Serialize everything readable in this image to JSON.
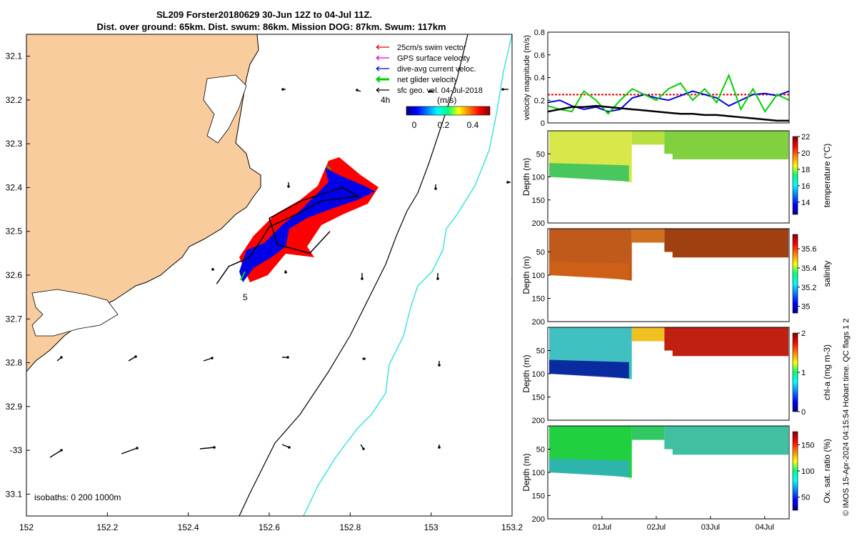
{
  "title": {
    "line1": "SL209 Forster20180629 30-Jun 12Z to 04-Jul 11Z.",
    "line2": "Dist. over ground: 65km. Dist. swum: 86km. Mission DOG: 87km. Swum: 117km"
  },
  "map": {
    "legend": [
      {
        "label": "25cm/s swim vector",
        "color": "#e00000"
      },
      {
        "label": "GPS surface velocity",
        "color": "#e000e0"
      },
      {
        "label": "dive-avg current veloc.",
        "color": "#0000e0"
      },
      {
        "label": "net glider velocity",
        "color": "#00d000"
      },
      {
        "label": "sfc geo. vel. 04-Jul-2018",
        "color": "#000000"
      }
    ],
    "colorbar_label": "(m/s)",
    "colorbar_note": "4h",
    "colorbar_ticks": [
      "0",
      "0.2",
      "0.4"
    ],
    "isobaths_text": "isobaths: 0   200  1000m",
    "start_label": "5",
    "colors": {
      "land": "#f9cc9e",
      "isobath_200": "#000000",
      "isobath_1000": "#33e0e0"
    }
  },
  "chart_data": [
    {
      "type": "scatter",
      "panel": "map",
      "xlabel": "",
      "ylabel": "",
      "xlim": [
        152.0,
        153.2
      ],
      "ylim": [
        -33.15,
        -32.05
      ],
      "x_ticks": [
        152,
        152.2,
        152.4,
        152.6,
        152.8,
        153,
        153.2
      ],
      "x_tick_labels": [
        "152",
        "152.2",
        "152.4",
        "152.6",
        "152.8",
        "153",
        "153.2"
      ],
      "y_ticks": [
        -32.1,
        -32.2,
        -32.3,
        -32.4,
        -32.5,
        -32.6,
        -32.7,
        -32.8,
        -32.9,
        -33.0,
        -33.1
      ],
      "y_tick_labels": [
        "32.1",
        "32.2",
        "32.3",
        "32.4",
        "32.5",
        "32.6",
        "32.7",
        "32.8",
        "32.9",
        "-33",
        "33.1"
      ],
      "glider_track": {
        "x": [
          152.47,
          152.5,
          152.55,
          152.58,
          152.6,
          152.67,
          152.73,
          152.82,
          152.78,
          152.68,
          152.6,
          152.62,
          152.7,
          152.73,
          152.75
        ],
        "y": [
          -32.62,
          -32.58,
          -32.56,
          -32.52,
          -32.49,
          -32.46,
          -32.43,
          -32.42,
          -32.4,
          -32.43,
          -32.47,
          -32.53,
          -32.55,
          -32.52,
          -32.5
        ]
      }
    },
    {
      "type": "line",
      "panel": "velocity",
      "ylabel": "velocity magnitude (m/s)",
      "ylim": [
        0,
        0.8
      ],
      "y_ticks": [
        0,
        0.2,
        0.4,
        0.6,
        0.8
      ],
      "y_tick_labels": [
        "0",
        "0.2",
        "0.4",
        "0.6",
        "0.8"
      ],
      "x_days": [
        0.0,
        0.2,
        0.4,
        0.6,
        0.8,
        1.0,
        1.2,
        1.4,
        1.6,
        1.8,
        2.0,
        2.2,
        2.4,
        2.6,
        2.8,
        3.0,
        3.2,
        3.4,
        3.6,
        3.8,
        4.0
      ],
      "series": [
        {
          "name": "25cm/s swim vector",
          "color": "#e00000",
          "values": [
            0.25,
            0.25,
            0.25,
            0.25,
            0.25,
            0.25,
            0.25,
            0.25,
            0.25,
            0.25,
            0.25,
            0.25,
            0.25,
            0.25,
            0.25,
            0.25,
            0.25,
            0.25,
            0.25,
            0.25,
            0.25
          ]
        },
        {
          "name": "dive-avg current veloc.",
          "color": "#0000e0",
          "values": [
            0.18,
            0.2,
            0.15,
            0.12,
            0.14,
            0.1,
            0.12,
            0.22,
            0.25,
            0.22,
            0.2,
            0.24,
            0.28,
            0.25,
            0.22,
            0.15,
            0.2,
            0.25,
            0.26,
            0.24,
            0.28
          ]
        },
        {
          "name": "net glider velocity",
          "color": "#00d000",
          "values": [
            0.15,
            0.12,
            0.1,
            0.28,
            0.2,
            0.08,
            0.2,
            0.3,
            0.25,
            0.2,
            0.3,
            0.35,
            0.2,
            0.3,
            0.18,
            0.42,
            0.12,
            0.3,
            0.1,
            0.25,
            0.2
          ]
        },
        {
          "name": "sfc geo. vel. 04-Jul-2018",
          "color": "#000000",
          "values": [
            0.1,
            0.12,
            0.14,
            0.14,
            0.15,
            0.14,
            0.13,
            0.12,
            0.11,
            0.1,
            0.09,
            0.08,
            0.08,
            0.07,
            0.07,
            0.06,
            0.05,
            0.04,
            0.03,
            0.02,
            0.02
          ]
        }
      ]
    },
    {
      "type": "heatmap",
      "panel": "temperature",
      "ylabel": "Depth (m)",
      "colorbar_label": "temperature (°C)",
      "ylim": [
        200,
        0
      ],
      "y_ticks": [
        50,
        100,
        150,
        200
      ],
      "clim": [
        12.5,
        22
      ],
      "colorbar_ticks": [
        "14",
        "16",
        "18",
        "20",
        "22"
      ],
      "colorbar_values": [
        14,
        16,
        18,
        20,
        22
      ]
    },
    {
      "type": "heatmap",
      "panel": "salinity",
      "ylabel": "Depth (m)",
      "colorbar_label": "salinity",
      "ylim": [
        200,
        0
      ],
      "y_ticks": [
        50,
        100,
        150,
        200
      ],
      "clim": [
        34.93,
        35.75
      ],
      "colorbar_ticks": [
        "35",
        "35.2",
        "35.4",
        "35.6"
      ],
      "colorbar_values": [
        35,
        35.2,
        35.4,
        35.6
      ]
    },
    {
      "type": "heatmap",
      "panel": "chla",
      "ylabel": "Depth (m)",
      "colorbar_label": "chl-a (mg m-3)",
      "ylim": [
        200,
        0
      ],
      "y_ticks": [
        50,
        100,
        150,
        200
      ],
      "clim": [
        0,
        2
      ],
      "colorbar_ticks": [
        "0",
        "1",
        "2"
      ],
      "colorbar_values": [
        0,
        1,
        2
      ]
    },
    {
      "type": "heatmap",
      "panel": "oxygen",
      "ylabel": "Depth (m)",
      "colorbar_label": "Ox. sat. ratio (%)",
      "ylim": [
        200,
        0
      ],
      "y_ticks": [
        50,
        100,
        150,
        200
      ],
      "clim": [
        25,
        175
      ],
      "colorbar_ticks": [
        "50",
        "100",
        "150"
      ],
      "colorbar_values": [
        50,
        100,
        150
      ],
      "x_tick_labels": [
        "01Jul",
        "02Jul",
        "03Jul",
        "04Jul"
      ],
      "x_ticks_days": [
        0.5,
        1.5,
        2.5,
        3.5
      ],
      "xlim_days": [
        -0.5,
        3.95
      ]
    }
  ],
  "credit": "© IMOS 15-Apr-2024 04:15:54 Hobart time. QC flags 1  2"
}
